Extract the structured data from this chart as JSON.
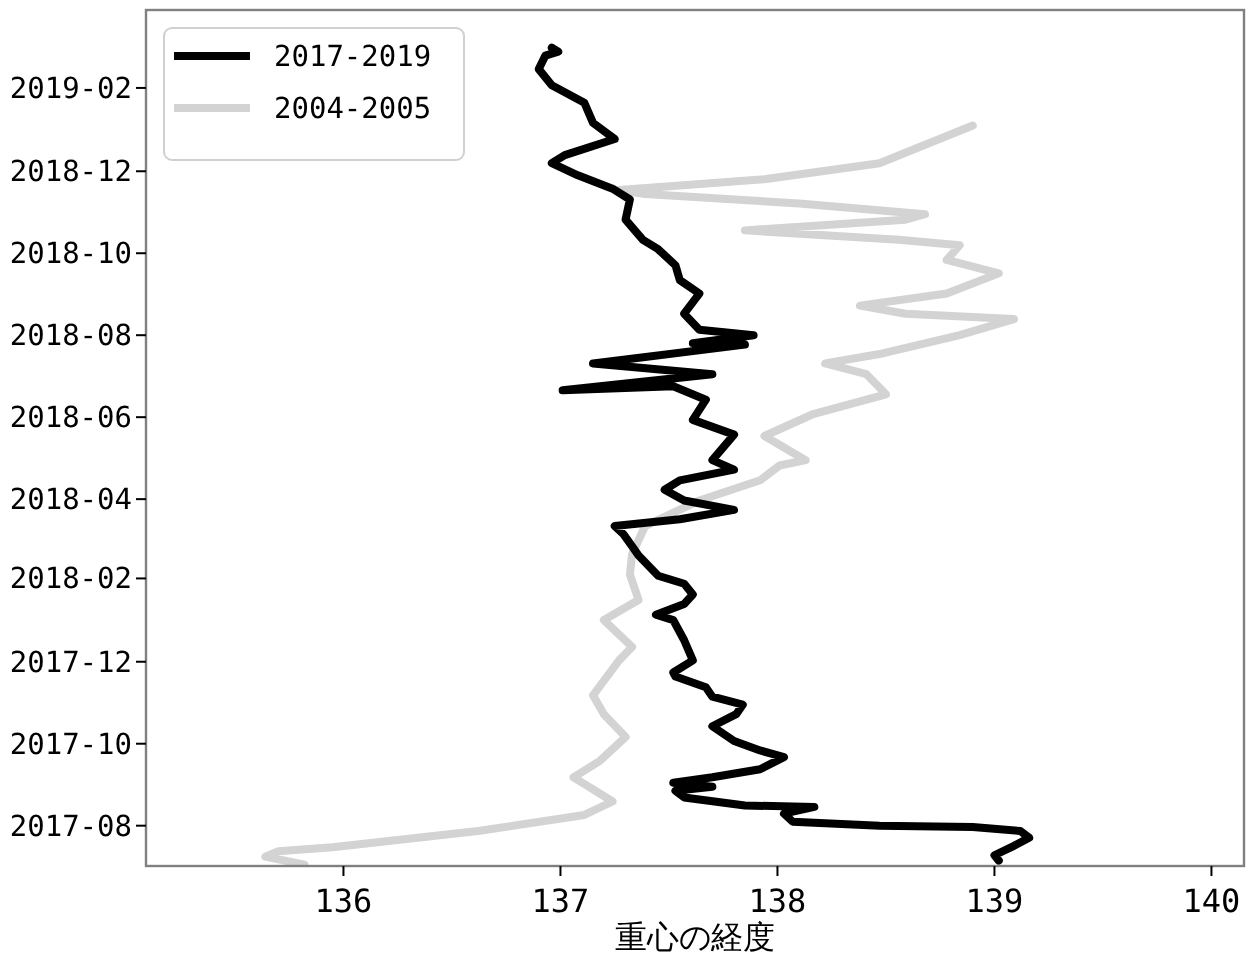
{
  "chart_data": {
    "type": "line",
    "orientation": "horizontal",
    "xlabel": "重心の経度",
    "legend": "top left",
    "xlim": [
      135.09,
      140.15
    ],
    "xticks": [
      136,
      137,
      138,
      139,
      140
    ],
    "ylim": [
      "2017-07-02",
      "2019-03-31"
    ],
    "yticks": [
      {
        "value": "2017-08-01",
        "label": "2017-08"
      },
      {
        "value": "2017-10-01",
        "label": "2017-10"
      },
      {
        "value": "2017-12-01",
        "label": "2017-12"
      },
      {
        "value": "2018-02-01",
        "label": "2018-02"
      },
      {
        "value": "2018-04-01",
        "label": "2018-04"
      },
      {
        "value": "2018-06-01",
        "label": "2018-06"
      },
      {
        "value": "2018-08-01",
        "label": "2018-08"
      },
      {
        "value": "2018-10-01",
        "label": "2018-10"
      },
      {
        "value": "2018-12-01",
        "label": "2018-12"
      },
      {
        "value": "2019-02-01",
        "label": "2019-02"
      }
    ],
    "series": [
      {
        "name": "2017-2019",
        "color": "#000000",
        "x": [
          "2017-07-06",
          "2017-07-10",
          "2017-07-17",
          "2017-07-23",
          "2017-07-28",
          "2017-07-31",
          "2017-08-01",
          "2017-08-04",
          "2017-08-10",
          "2017-08-15",
          "2017-08-16",
          "2017-08-22",
          "2017-08-27",
          "2017-08-30",
          "2017-09-02",
          "2017-09-06",
          "2017-09-12",
          "2017-09-21",
          "2017-09-26",
          "2017-10-03",
          "2017-10-14",
          "2017-10-23",
          "2017-10-30",
          "2017-11-05",
          "2017-11-12",
          "2017-11-20",
          "2017-11-23",
          "2017-12-02",
          "2017-12-17",
          "2018-01-01",
          "2018-01-05",
          "2018-01-13",
          "2018-01-20",
          "2018-01-28",
          "2018-02-03",
          "2018-02-18",
          "2018-02-25",
          "2018-03-06",
          "2018-03-12",
          "2018-03-17",
          "2018-03-24",
          "2018-03-31",
          "2018-04-08",
          "2018-04-15",
          "2018-04-23",
          "2018-04-30",
          "2018-05-19",
          "2018-05-30",
          "2018-06-14",
          "2018-06-24",
          "2018-06-21",
          "2018-07-03",
          "2018-07-11",
          "2018-07-25",
          "2018-07-26",
          "2018-08-01",
          "2018-08-05",
          "2018-08-17",
          "2018-09-01",
          "2018-09-11",
          "2018-09-22",
          "2018-10-04",
          "2018-10-11",
          "2018-10-26",
          "2018-11-10",
          "2018-11-18",
          "2018-11-28",
          "2018-12-07",
          "2018-12-13",
          "2018-12-25",
          "2019-01-06",
          "2019-01-21",
          "2019-02-03",
          "2019-02-15",
          "2019-02-25",
          "2019-02-28",
          "2019-03-03"
        ],
        "values": [
          139.02,
          139.0,
          139.09,
          139.16,
          139.12,
          138.9,
          138.47,
          138.07,
          138.03,
          138.17,
          137.85,
          137.57,
          137.53,
          137.7,
          137.52,
          137.7,
          137.92,
          138.03,
          137.92,
          137.8,
          137.7,
          137.81,
          137.84,
          137.7,
          137.67,
          137.53,
          137.52,
          137.61,
          137.57,
          137.52,
          137.44,
          137.57,
          137.61,
          137.57,
          137.45,
          137.36,
          137.33,
          137.29,
          137.25,
          137.55,
          137.8,
          137.57,
          137.48,
          137.55,
          137.8,
          137.7,
          137.8,
          137.61,
          137.67,
          137.52,
          137.01,
          137.7,
          137.15,
          137.85,
          137.61,
          137.89,
          137.64,
          137.57,
          137.64,
          137.55,
          137.53,
          137.45,
          137.38,
          137.3,
          137.32,
          137.24,
          137.08,
          136.96,
          137.02,
          137.25,
          137.15,
          137.11,
          136.96,
          136.9,
          136.93,
          136.99,
          136.96
        ]
      },
      {
        "name": "2004-2005",
        "color": "#d3d3d3",
        "x": [
          "2017-07-03",
          "2017-07-09",
          "2017-07-13",
          "2017-07-16",
          "2017-07-28",
          "2017-08-09",
          "2017-08-19",
          "2017-08-30",
          "2017-09-06",
          "2017-09-18",
          "2017-10-06",
          "2017-10-23",
          "2017-11-06",
          "2017-12-02",
          "2017-12-12",
          "2018-01-01",
          "2018-01-16",
          "2018-02-04",
          "2018-02-19",
          "2018-03-12",
          "2018-03-31",
          "2018-04-15",
          "2018-04-26",
          "2018-04-30",
          "2018-05-18",
          "2018-06-03",
          "2018-06-18",
          "2018-07-03",
          "2018-07-11",
          "2018-07-18",
          "2018-08-01",
          "2018-08-13",
          "2018-08-17",
          "2018-08-23",
          "2018-09-01",
          "2018-09-16",
          "2018-09-26",
          "2018-10-07",
          "2018-10-11",
          "2018-10-18",
          "2018-10-26",
          "2018-10-30",
          "2018-11-07",
          "2018-11-14",
          "2018-11-17",
          "2018-11-25",
          "2018-12-07",
          "2019-01-04"
        ],
        "values": [
          135.82,
          135.64,
          135.7,
          135.95,
          136.62,
          137.11,
          137.24,
          137.13,
          137.06,
          137.18,
          137.3,
          137.2,
          137.15,
          137.27,
          137.33,
          137.2,
          137.36,
          137.32,
          137.33,
          137.39,
          137.64,
          137.92,
          138.01,
          138.13,
          137.94,
          138.16,
          138.5,
          138.41,
          138.22,
          138.47,
          138.84,
          139.09,
          138.59,
          138.38,
          138.78,
          139.02,
          138.78,
          138.84,
          138.56,
          137.85,
          138.59,
          138.68,
          138.1,
          137.39,
          137.27,
          137.94,
          138.47,
          138.9
        ]
      }
    ]
  }
}
